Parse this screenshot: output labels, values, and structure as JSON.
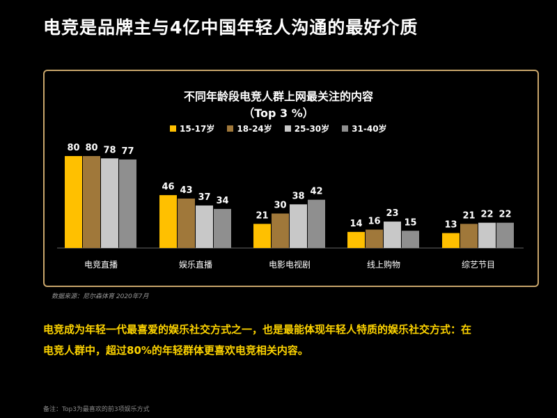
{
  "page": {
    "title": "电竞是品牌主与4亿中国年轻人沟通的最好介质",
    "source": "数据来源：尼尔森体育 2020年7月",
    "body_text_line1": "电竞成为年轻一代最喜爱的娱乐社交方式之一，也是最能体现年轻人特质的娱乐社交方式：在",
    "body_text_line2": "电竞人群中，超过80%的年轻群体更喜欢电竞相关内容。",
    "footnote": "备注：Top3为最喜欢的前3项娱乐方式"
  },
  "chart_data": {
    "type": "bar",
    "title": "不同年龄段电竞人群上网最关注的内容",
    "subtitle": "（Top 3 %）",
    "categories": [
      "电竞直播",
      "娱乐直播",
      "电影电视剧",
      "线上购物",
      "综艺节目"
    ],
    "series": [
      {
        "name": "15-17岁",
        "values": [
          80,
          46,
          21,
          14,
          13
        ],
        "color": "#ffc000"
      },
      {
        "name": "18-24岁",
        "values": [
          80,
          43,
          30,
          16,
          21
        ],
        "color": "#a0783a"
      },
      {
        "name": "25-30岁",
        "values": [
          78,
          37,
          38,
          23,
          22
        ],
        "color": "#c8c8c8"
      },
      {
        "name": "31-40岁",
        "values": [
          77,
          34,
          42,
          15,
          22
        ],
        "color": "#8f8f8f"
      }
    ],
    "ylim": [
      0,
      100
    ],
    "grid": false,
    "legend_position": "top",
    "data_labels": true
  }
}
